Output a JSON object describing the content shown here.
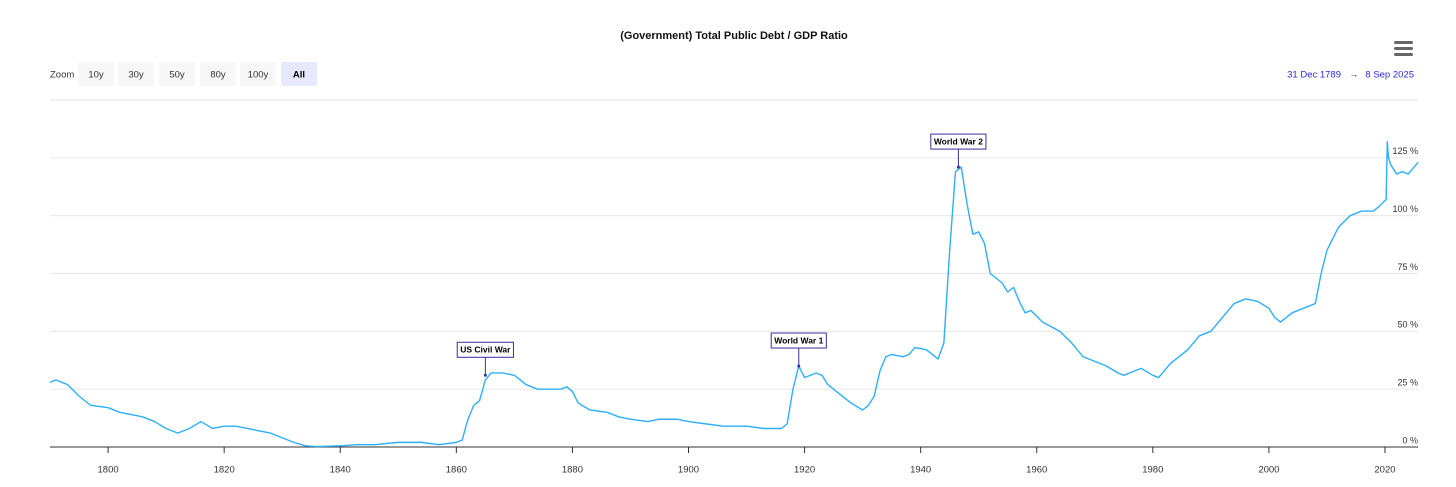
{
  "chart_data": {
    "type": "line",
    "title": "(Government) Total Public Debt / GDP Ratio",
    "range_selector": {
      "label": "Zoom",
      "buttons": [
        "10y",
        "30y",
        "50y",
        "80y",
        "100y",
        "All"
      ],
      "selected": 5
    },
    "date_range": {
      "from": "31 Dec 1789",
      "arrow": "→",
      "to": "8 Sep 2025"
    },
    "color": "#2caffe",
    "grid": true,
    "xlim": [
      1789.99,
      2025.69
    ],
    "xticks": [
      1800,
      1820,
      1840,
      1860,
      1880,
      1900,
      1920,
      1940,
      1960,
      1980,
      2000,
      2020
    ],
    "ylim": [
      0,
      150
    ],
    "yticks": [
      {
        "value": 0,
        "label": "0 %"
      },
      {
        "value": 25,
        "label": "25 %"
      },
      {
        "value": 50,
        "label": "50 %"
      },
      {
        "value": 75,
        "label": "75 %"
      },
      {
        "value": 100,
        "label": "100 %"
      },
      {
        "value": 125,
        "label": "125 %"
      }
    ],
    "x": [
      1790,
      1791,
      1793,
      1795,
      1797,
      1800,
      1802,
      1804,
      1806,
      1808,
      1810,
      1812,
      1814,
      1816,
      1818,
      1820,
      1822,
      1824,
      1826,
      1828,
      1830,
      1832,
      1834,
      1836,
      1840,
      1843,
      1846,
      1850,
      1854,
      1857,
      1860,
      1861,
      1862,
      1863,
      1864,
      1865,
      1866,
      1868,
      1870,
      1872,
      1874,
      1876,
      1878,
      1879,
      1880,
      1881,
      1883,
      1886,
      1888,
      1890,
      1893,
      1895,
      1898,
      1900,
      1903,
      1906,
      1910,
      1913,
      1916,
      1917,
      1918,
      1919,
      1920,
      1922,
      1923,
      1924,
      1926,
      1928,
      1930,
      1931,
      1932,
      1933,
      1934,
      1935,
      1937,
      1938,
      1939,
      1941,
      1943,
      1944,
      1945,
      1946,
      1947,
      1948,
      1949,
      1950,
      1951,
      1952,
      1954,
      1955,
      1956,
      1957,
      1958,
      1959,
      1961,
      1964,
      1966,
      1968,
      1970,
      1972,
      1974,
      1975,
      1977,
      1978,
      1980,
      1981,
      1983,
      1986,
      1988,
      1990,
      1992,
      1994,
      1996,
      1998,
      2000,
      2001,
      2002,
      2004,
      2006,
      2008,
      2009,
      2010,
      2012,
      2014,
      2016,
      2018,
      2019,
      2020.2,
      2020.4,
      2020.6,
      2021,
      2022,
      2023,
      2024,
      2025,
      2025.7
    ],
    "values": [
      28,
      29,
      27,
      22,
      18,
      17,
      15,
      14,
      13,
      11,
      8,
      6,
      8,
      11,
      8,
      9,
      9,
      8,
      7,
      6,
      4,
      2,
      0.5,
      0.2,
      0.5,
      1,
      1,
      2,
      2,
      1,
      2,
      3,
      12,
      18,
      20,
      29,
      32,
      32,
      31,
      27,
      25,
      25,
      25,
      26,
      24,
      19,
      16,
      15,
      13,
      12,
      11,
      12,
      12,
      11,
      10,
      9,
      9,
      8,
      8,
      10,
      25,
      35,
      30,
      32,
      31,
      27,
      23,
      19,
      16,
      18,
      22,
      33,
      39,
      40,
      39,
      40,
      43,
      42,
      38,
      45,
      85,
      119,
      121,
      105,
      92,
      93,
      88,
      75,
      71,
      67,
      69,
      63,
      58,
      59,
      54,
      50,
      45,
      39,
      37,
      35,
      32,
      31,
      33,
      34,
      31,
      30,
      36,
      42,
      48,
      50,
      56,
      62,
      64,
      63,
      60,
      56,
      54,
      58,
      60,
      62,
      75,
      85,
      95,
      100,
      102,
      102,
      104,
      107,
      132,
      125,
      122,
      118,
      119,
      118,
      121,
      123
    ],
    "annotations": [
      {
        "text": "US Civil War",
        "x": 1865,
        "y": 31
      },
      {
        "text": "World War 1",
        "x": 1919,
        "y": 35
      },
      {
        "text": "World War 2",
        "x": 1946.5,
        "y": 121
      }
    ]
  }
}
